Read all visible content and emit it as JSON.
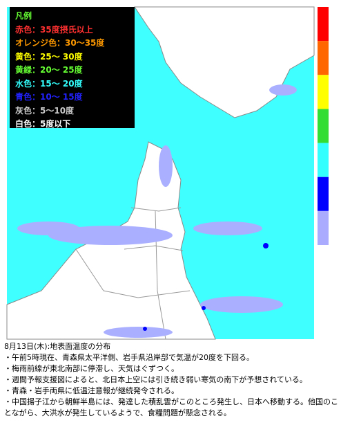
{
  "legend": {
    "title": "凡例",
    "items": [
      {
        "label": "赤色：35度摂氏以上",
        "color": "#ff3030"
      },
      {
        "label": "オレンジ色：30～35度",
        "color": "#ff9900"
      },
      {
        "label": "黄色：25～ 30度",
        "color": "#ffff00"
      },
      {
        "label": "黄緑：20～ 25度",
        "color": "#66ff33"
      },
      {
        "label": "水色：15～ 20度",
        "color": "#33ffff"
      },
      {
        "label": "青色：10～ 15度",
        "color": "#2222ff"
      },
      {
        "label": "灰色：5～10度",
        "color": "#cccccc"
      },
      {
        "label": "白色：5度以下",
        "color": "#ffffff"
      }
    ]
  },
  "colorbar": [
    "#ff0000",
    "#ff6600",
    "#ffff00",
    "#33dd33",
    "#33ffff",
    "#0000ff",
    "#aaaaff"
  ],
  "caption": {
    "title": "8月13日(木):地表面温度の分布",
    "bullets": [
      "・午前5時現在、青森県太平洋側、岩手県沿岸部で気温が20度を下回る。",
      "・梅雨前線が東北南部に停滞し、天気はぐずつく。",
      "・週間予報支援図によると、北日本上空には引き続き弱い寒気の南下が予想されている。",
      "・青森・岩手両県に低温注意報が継続発令される。",
      "・中国揚子江から朝鮮半島には、発達した積乱雲がこのところ発生し、日本へ移動する。他国のことながら、大洪水が発生しているようで、食糧問題が懸念される。"
    ]
  }
}
